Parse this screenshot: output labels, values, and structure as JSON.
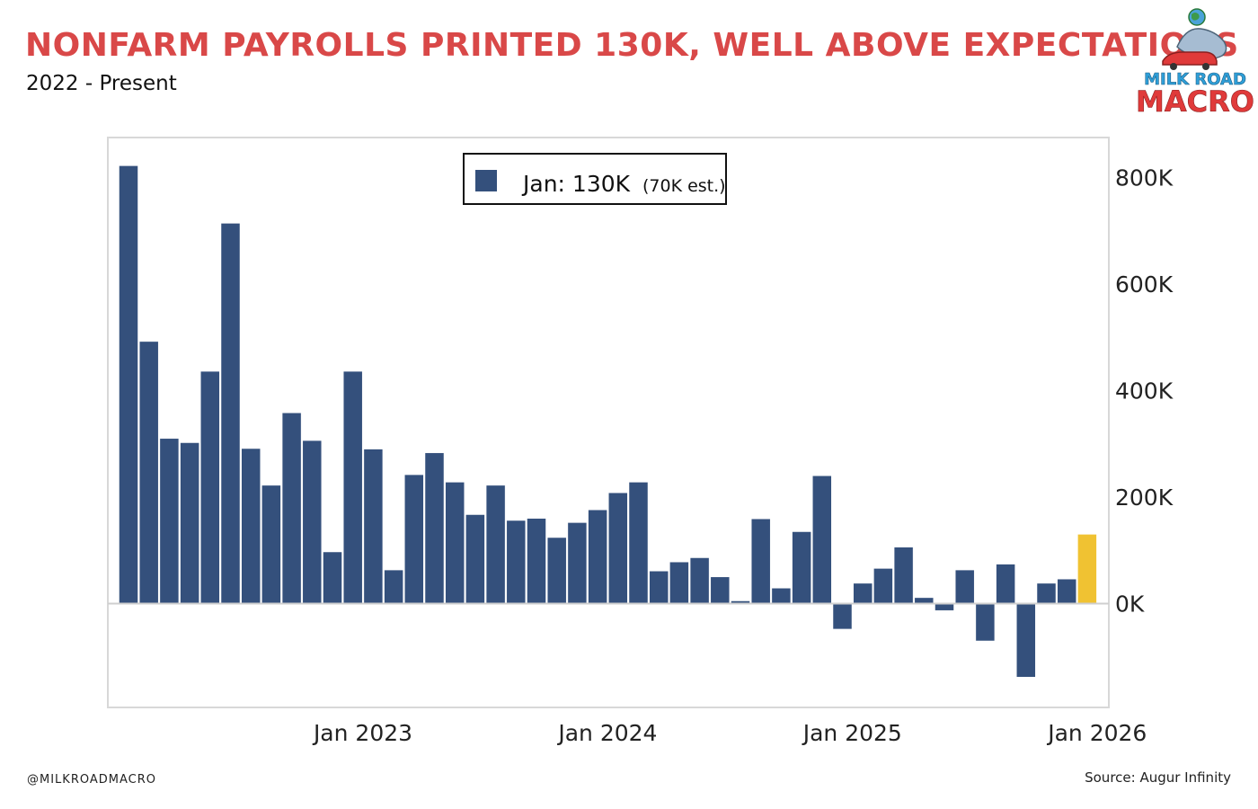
{
  "header": {
    "title": "NONFARM PAYROLLS PRINTED 130K, WELL ABOVE EXPECTATIONS",
    "subtitle": "2022 - Present"
  },
  "logo": {
    "line1": "MILK ROAD",
    "line2": "MACRO"
  },
  "footer": {
    "handle": "@MILKROADMACRO",
    "source": "Source: Augur Infinity"
  },
  "colors": {
    "title": "#d94848",
    "bar": "#34507c",
    "highlight": "#f0c232",
    "logo_blue": "#2f9fd8",
    "logo_red": "#e03a3a"
  },
  "chart_data": {
    "type": "bar",
    "legend": {
      "label": "Jan: 130K",
      "note": "(70K est.)",
      "placement": "top-center"
    },
    "y_ticks": [
      {
        "value": 800,
        "label": "800K"
      },
      {
        "value": 600,
        "label": "600K"
      },
      {
        "value": 400,
        "label": "400K"
      },
      {
        "value": 200,
        "label": "200K"
      },
      {
        "value": 0,
        "label": "0K"
      }
    ],
    "x_ticks": [
      {
        "index": 12,
        "label": "Jan 2023"
      },
      {
        "index": 24,
        "label": "Jan 2024"
      },
      {
        "index": 36,
        "label": "Jan 2025"
      },
      {
        "index": 48,
        "label": "Jan 2026"
      }
    ],
    "ylim": [
      -195,
      875
    ],
    "y_axis_side": "right",
    "grid": false,
    "units": "thousands of jobs",
    "values": [
      822,
      492,
      310,
      302,
      436,
      714,
      291,
      222,
      358,
      306,
      97,
      436,
      290,
      63,
      242,
      283,
      228,
      167,
      222,
      156,
      160,
      124,
      152,
      176,
      208,
      228,
      61,
      78,
      86,
      50,
      5,
      159,
      29,
      135,
      240,
      -48,
      38,
      66,
      106,
      11,
      -13,
      63,
      -70,
      74,
      -138,
      38,
      46,
      130
    ],
    "highlight_index": 47
  }
}
